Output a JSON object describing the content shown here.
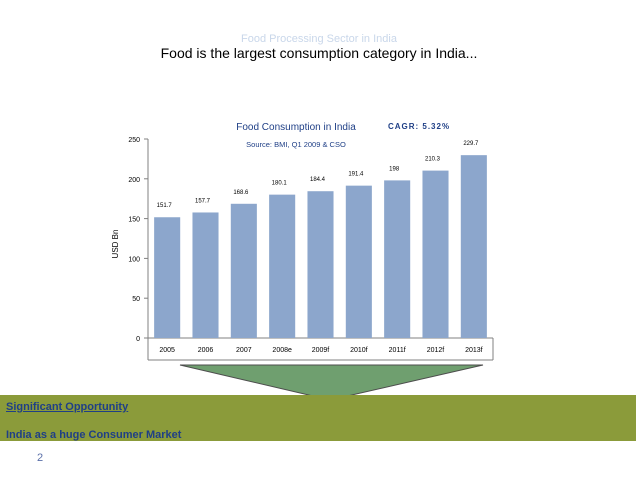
{
  "header": {
    "supertitle": "Food Processing Sector in India",
    "title": "Food is the largest consumption category in India..."
  },
  "chart_data": {
    "type": "bar",
    "title": "Food Consumption in India",
    "subtitle": "Source: BMI, Q1 2009 & CSO",
    "annotation": "CAGR: 5.32%",
    "ylabel": "USD Bn",
    "xlabel": "",
    "ylim": [
      0,
      250
    ],
    "yticks": [
      0,
      50,
      100,
      150,
      200,
      250
    ],
    "categories": [
      "2005",
      "2006",
      "2007",
      "2008e",
      "2009f",
      "2010f",
      "2011f",
      "2012f",
      "2013f"
    ],
    "values": [
      151.7,
      157.7,
      168.6,
      180.1,
      184.4,
      191.4,
      198,
      210.3,
      229.7
    ],
    "value_labels": [
      "151.7",
      "157.7",
      "168.6",
      "180.1",
      "184.4",
      "191.4",
      "198",
      "210.3",
      "229.7"
    ],
    "bar_color": "#8ca6cc",
    "title_color": "#1f3f86",
    "annotation_color": "#1f3f86",
    "grid": false,
    "legend": "none"
  },
  "banner": {
    "line1": "Significant Opportunity",
    "line2": "India as a huge Consumer Market",
    "color": "#8b9b3a",
    "arrow_color": "#6f9f6f"
  },
  "page_number": "2"
}
